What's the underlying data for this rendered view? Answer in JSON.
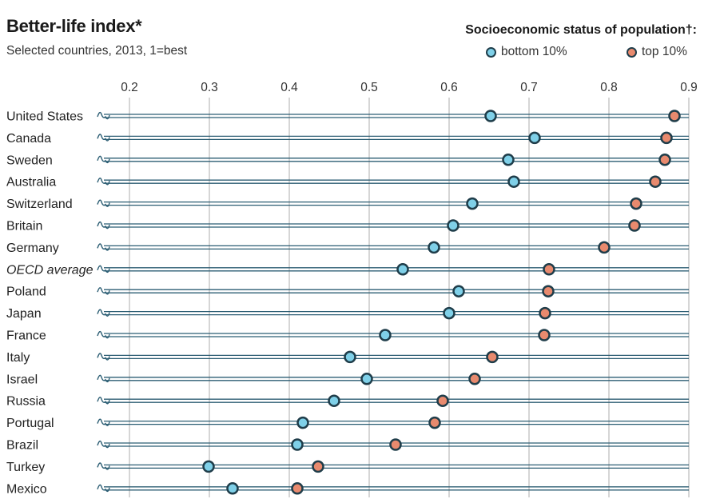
{
  "header": {
    "title": "Better-life index*",
    "subtitle": "Selected countries, 2013, 1=best"
  },
  "legend": {
    "title": "Socioeconomic status of population†:",
    "bottom_label": "bottom 10%",
    "top_label": "top 10%"
  },
  "colors": {
    "bottom": "#7fd0e8",
    "top": "#e88a6e",
    "marker_outline": "#1f3d4a",
    "row_line": "#2b5d73",
    "grid": "#c8c8c8"
  },
  "chart_data": {
    "type": "scatter",
    "title": "Better-life index*",
    "subtitle": "Selected countries, 2013, 1=best",
    "xlim": [
      0.2,
      0.9
    ],
    "x_ticks": [
      "0.2",
      "0.3",
      "0.4",
      "0.5",
      "0.6",
      "0.7",
      "0.8",
      "0.9"
    ],
    "grid": true,
    "legend_position": "top-right",
    "categories": [
      "United States",
      "Canada",
      "Sweden",
      "Australia",
      "Switzerland",
      "Britain",
      "Germany",
      "OECD average",
      "Poland",
      "Japan",
      "France",
      "Italy",
      "Israel",
      "Russia",
      "Portugal",
      "Brazil",
      "Turkey",
      "Mexico"
    ],
    "italic_categories": [
      "OECD average"
    ],
    "series": [
      {
        "name": "bottom 10%",
        "values": [
          0.652,
          0.707,
          0.674,
          0.681,
          0.629,
          0.605,
          0.581,
          0.542,
          0.612,
          0.6,
          0.52,
          0.476,
          0.497,
          0.456,
          0.417,
          0.41,
          0.299,
          0.329
        ]
      },
      {
        "name": "top 10%",
        "values": [
          0.882,
          0.872,
          0.87,
          0.858,
          0.834,
          0.832,
          0.794,
          0.725,
          0.724,
          0.72,
          0.719,
          0.654,
          0.632,
          0.592,
          0.582,
          0.533,
          0.436,
          0.41
        ]
      }
    ]
  }
}
